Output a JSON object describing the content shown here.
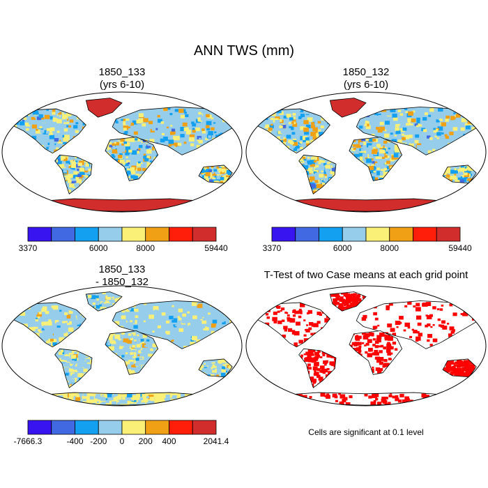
{
  "chart_data": [
    {
      "type": "heatmap",
      "title": "ANN TWS (mm)",
      "panels": [
        {
          "title": "1850_133\n(yrs 6-10)",
          "colorbar": {
            "tick_labels": [
              "3370",
              "6000",
              "8000",
              "59440"
            ],
            "colors": [
              "#3814f0",
              "#4169e1",
              "#14a0f0",
              "#96cdeb",
              "#faf078",
              "#f0a014",
              "#ff1e0a",
              "#d22d2d"
            ]
          }
        },
        {
          "title": "1850_132\n(yrs 6-10)",
          "colorbar": {
            "tick_labels": [
              "3370",
              "6000",
              "8000",
              "59440"
            ],
            "colors": [
              "#3814f0",
              "#4169e1",
              "#14a0f0",
              "#96cdeb",
              "#faf078",
              "#f0a014",
              "#ff1e0a",
              "#d22d2d"
            ]
          }
        },
        {
          "title": "1850_133\n- 1850_132",
          "colorbar": {
            "tick_labels": [
              "-7666.3",
              "-400",
              "-200",
              "0",
              "200",
              "400",
              "2041.4"
            ],
            "colors": [
              "#3814f0",
              "#4169e1",
              "#14a0f0",
              "#96cdeb",
              "#faf078",
              "#f0a014",
              "#ff1e0a",
              "#d22d2d"
            ]
          }
        },
        {
          "title": "T-Test of two Case means at each grid point",
          "note": "Cells are significant at 0.1 level",
          "significance_color": "#ff0000"
        }
      ]
    }
  ]
}
